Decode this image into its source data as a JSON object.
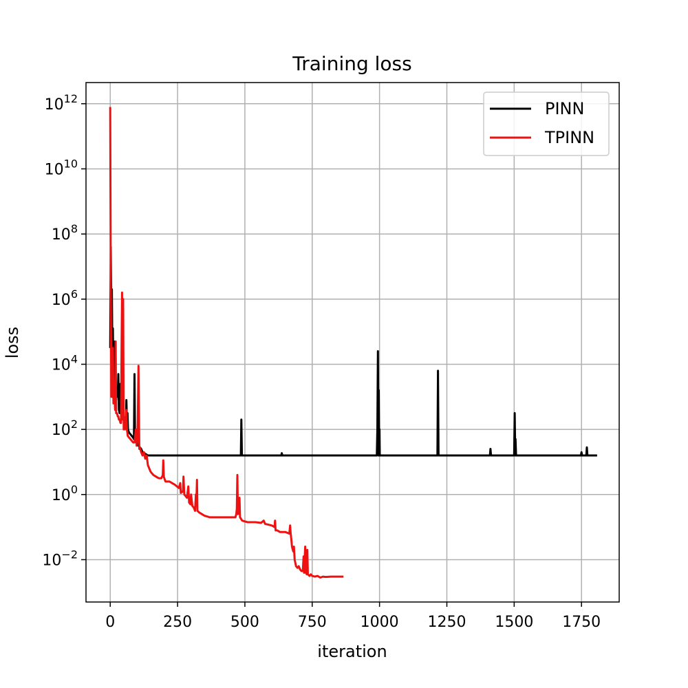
{
  "chart_data": {
    "type": "line",
    "title": "Training loss",
    "xlabel": "iteration",
    "ylabel": "loss",
    "xlim": [
      -90,
      1890
    ],
    "ylim_log10": [
      -3.3,
      12.65
    ],
    "yscale": "log",
    "grid": true,
    "legend_position": "top-right",
    "xticks": [
      0,
      250,
      500,
      750,
      1000,
      1250,
      1500,
      1750
    ],
    "yticks_log10": [
      -2,
      0,
      2,
      4,
      6,
      8,
      10,
      12
    ],
    "series": [
      {
        "name": "PINN",
        "color": "#000000",
        "points_log10": [
          [
            0,
            4.5
          ],
          [
            2,
            7.6
          ],
          [
            4,
            5.8
          ],
          [
            6,
            6.3
          ],
          [
            8,
            4.2
          ],
          [
            10,
            5.1
          ],
          [
            12,
            3.4
          ],
          [
            14,
            4.7
          ],
          [
            16,
            3.0
          ],
          [
            18,
            4.2
          ],
          [
            20,
            3.1
          ],
          [
            22,
            2.9
          ],
          [
            25,
            3.3
          ],
          [
            28,
            3.0
          ],
          [
            30,
            3.7
          ],
          [
            32,
            2.6
          ],
          [
            35,
            2.5
          ],
          [
            38,
            3.4
          ],
          [
            40,
            2.6
          ],
          [
            42,
            2.4
          ],
          [
            45,
            2.5
          ],
          [
            48,
            2.3
          ],
          [
            50,
            2.4
          ],
          [
            53,
            2.2
          ],
          [
            55,
            2.3
          ],
          [
            58,
            2.1
          ],
          [
            60,
            2.9
          ],
          [
            62,
            2.2
          ],
          [
            64,
            2.5
          ],
          [
            66,
            2.0
          ],
          [
            68,
            1.95
          ],
          [
            70,
            1.9
          ],
          [
            75,
            1.85
          ],
          [
            80,
            1.8
          ],
          [
            85,
            1.75
          ],
          [
            88,
            1.7
          ],
          [
            90,
            3.7
          ],
          [
            92,
            1.9
          ],
          [
            94,
            1.7
          ],
          [
            96,
            1.65
          ],
          [
            100,
            1.6
          ],
          [
            105,
            1.5
          ],
          [
            110,
            1.45
          ],
          [
            115,
            1.4
          ],
          [
            120,
            1.3
          ],
          [
            130,
            1.25
          ],
          [
            140,
            1.2
          ],
          [
            160,
            1.2
          ],
          [
            200,
            1.2
          ],
          [
            300,
            1.2
          ],
          [
            400,
            1.2
          ],
          [
            485,
            1.2
          ],
          [
            487,
            2.3
          ],
          [
            489,
            1.2
          ],
          [
            635,
            1.2
          ],
          [
            637,
            1.27
          ],
          [
            639,
            1.2
          ],
          [
            800,
            1.2
          ],
          [
            990,
            1.2
          ],
          [
            992,
            2.0
          ],
          [
            994,
            4.4
          ],
          [
            996,
            1.2
          ],
          [
            997,
            3.2
          ],
          [
            999,
            1.2
          ],
          [
            1000,
            2.0
          ],
          [
            1001,
            1.2
          ],
          [
            1215,
            1.2
          ],
          [
            1217,
            3.8
          ],
          [
            1219,
            1.2
          ],
          [
            1410,
            1.2
          ],
          [
            1412,
            1.4
          ],
          [
            1414,
            1.2
          ],
          [
            1500,
            1.2
          ],
          [
            1502,
            2.5
          ],
          [
            1504,
            1.2
          ],
          [
            1505,
            1.7
          ],
          [
            1507,
            1.2
          ],
          [
            1748,
            1.2
          ],
          [
            1750,
            1.3
          ],
          [
            1752,
            1.2
          ],
          [
            1768,
            1.2
          ],
          [
            1770,
            1.45
          ],
          [
            1772,
            1.2
          ],
          [
            1808,
            1.2
          ]
        ]
      },
      {
        "name": "TPINN",
        "color": "#ee1111",
        "points_log10": [
          [
            0,
            11.9
          ],
          [
            2,
            6.5
          ],
          [
            4,
            3.0
          ],
          [
            6,
            3.8
          ],
          [
            8,
            3.0
          ],
          [
            10,
            4.5
          ],
          [
            12,
            2.8
          ],
          [
            15,
            3.2
          ],
          [
            18,
            2.6
          ],
          [
            20,
            4.7
          ],
          [
            22,
            2.5
          ],
          [
            25,
            2.5
          ],
          [
            28,
            2.4
          ],
          [
            30,
            2.4
          ],
          [
            32,
            2.3
          ],
          [
            35,
            2.3
          ],
          [
            38,
            2.2
          ],
          [
            40,
            2.2
          ],
          [
            42,
            4.5
          ],
          [
            44,
            6.2
          ],
          [
            46,
            2.3
          ],
          [
            48,
            6.0
          ],
          [
            50,
            2.0
          ],
          [
            52,
            2.2
          ],
          [
            55,
            2.0
          ],
          [
            58,
            2.4
          ],
          [
            60,
            2.6
          ],
          [
            62,
            2.0
          ],
          [
            65,
            1.8
          ],
          [
            70,
            1.75
          ],
          [
            75,
            1.7
          ],
          [
            80,
            1.65
          ],
          [
            85,
            1.6
          ],
          [
            90,
            1.6
          ],
          [
            95,
            2.0
          ],
          [
            98,
            1.5
          ],
          [
            100,
            1.6
          ],
          [
            102,
            2.2
          ],
          [
            105,
            3.95
          ],
          [
            108,
            1.4
          ],
          [
            110,
            1.45
          ],
          [
            115,
            1.3
          ],
          [
            120,
            1.2
          ],
          [
            125,
            1.3
          ],
          [
            130,
            1.1
          ],
          [
            135,
            1.2
          ],
          [
            140,
            0.9
          ],
          [
            150,
            0.7
          ],
          [
            160,
            0.6
          ],
          [
            170,
            0.55
          ],
          [
            180,
            0.5
          ],
          [
            190,
            0.5
          ],
          [
            195,
            0.6
          ],
          [
            197,
            1.05
          ],
          [
            199,
            0.55
          ],
          [
            205,
            0.4
          ],
          [
            220,
            0.4
          ],
          [
            240,
            0.3
          ],
          [
            255,
            0.2
          ],
          [
            260,
            0.35
          ],
          [
            262,
            0.05
          ],
          [
            270,
            0.1
          ],
          [
            272,
            0.55
          ],
          [
            275,
            0.0
          ],
          [
            285,
            -0.1
          ],
          [
            290,
            0.25
          ],
          [
            293,
            -0.25
          ],
          [
            298,
            -0.3
          ],
          [
            300,
            0.0
          ],
          [
            305,
            -0.35
          ],
          [
            310,
            -0.4
          ],
          [
            315,
            -0.5
          ],
          [
            318,
            0.0
          ],
          [
            320,
            -0.2
          ],
          [
            322,
            0.45
          ],
          [
            324,
            -0.5
          ],
          [
            330,
            -0.55
          ],
          [
            340,
            -0.6
          ],
          [
            350,
            -0.65
          ],
          [
            370,
            -0.7
          ],
          [
            400,
            -0.7
          ],
          [
            440,
            -0.7
          ],
          [
            465,
            -0.7
          ],
          [
            468,
            -0.6
          ],
          [
            470,
            -0.45
          ],
          [
            472,
            0.6
          ],
          [
            474,
            -0.6
          ],
          [
            478,
            -0.55
          ],
          [
            480,
            -0.1
          ],
          [
            482,
            -0.7
          ],
          [
            490,
            -0.8
          ],
          [
            510,
            -0.85
          ],
          [
            540,
            -0.85
          ],
          [
            560,
            -0.87
          ],
          [
            570,
            -0.8
          ],
          [
            575,
            -0.9
          ],
          [
            600,
            -0.95
          ],
          [
            610,
            -1.0
          ],
          [
            612,
            -0.8
          ],
          [
            614,
            -1.1
          ],
          [
            620,
            -1.1
          ],
          [
            630,
            -1.15
          ],
          [
            650,
            -1.15
          ],
          [
            665,
            -1.2
          ],
          [
            668,
            -0.95
          ],
          [
            670,
            -1.2
          ],
          [
            672,
            -1.35
          ],
          [
            675,
            -1.6
          ],
          [
            678,
            -1.7
          ],
          [
            680,
            -1.75
          ],
          [
            682,
            -1.6
          ],
          [
            685,
            -2.0
          ],
          [
            690,
            -2.2
          ],
          [
            695,
            -2.25
          ],
          [
            700,
            -2.2
          ],
          [
            705,
            -2.3
          ],
          [
            710,
            -2.35
          ],
          [
            715,
            -2.35
          ],
          [
            718,
            -1.9
          ],
          [
            720,
            -2.4
          ],
          [
            724,
            -1.6
          ],
          [
            726,
            -2.4
          ],
          [
            730,
            -2.45
          ],
          [
            732,
            -1.7
          ],
          [
            734,
            -2.45
          ],
          [
            740,
            -2.5
          ],
          [
            745,
            -2.45
          ],
          [
            750,
            -2.5
          ],
          [
            760,
            -2.52
          ],
          [
            770,
            -2.5
          ],
          [
            780,
            -2.55
          ],
          [
            790,
            -2.52
          ],
          [
            800,
            -2.53
          ],
          [
            820,
            -2.52
          ],
          [
            850,
            -2.52
          ],
          [
            866,
            -2.52
          ]
        ]
      }
    ]
  }
}
